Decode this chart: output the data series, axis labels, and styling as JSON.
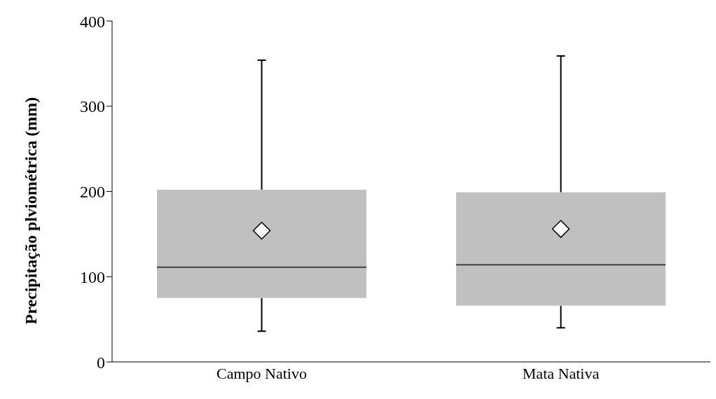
{
  "chart_data": {
    "type": "box",
    "ylabel": "Precipitação plviométrica (mm)",
    "categories": [
      "Campo Nativo",
      "Mata Nativa"
    ],
    "boxes": [
      {
        "low": 36,
        "q1": 75,
        "median": 111,
        "q3": 202,
        "high": 354,
        "mean": 154
      },
      {
        "low": 40,
        "q1": 66,
        "median": 114,
        "q3": 199,
        "high": 359,
        "mean": 156
      }
    ],
    "color": "#c0c0c0",
    "ylim": [
      0,
      400
    ],
    "yticks": [
      0,
      100,
      200,
      300,
      400
    ]
  }
}
